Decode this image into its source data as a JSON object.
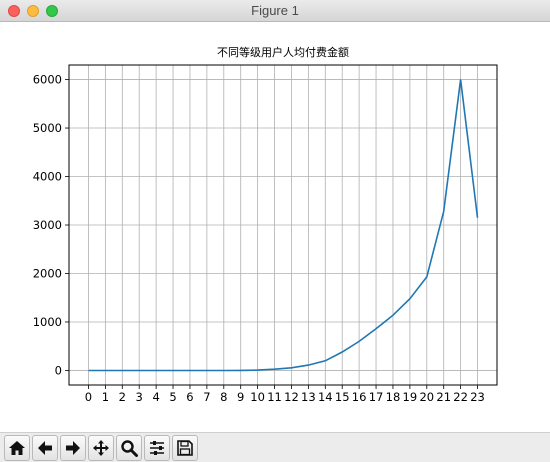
{
  "window": {
    "title": "Figure 1"
  },
  "toolbar": {
    "buttons": [
      {
        "name": "home-button",
        "icon": "home-icon"
      },
      {
        "name": "back-button",
        "icon": "arrow-left-icon"
      },
      {
        "name": "forward-button",
        "icon": "arrow-right-icon"
      },
      {
        "name": "pan-button",
        "icon": "move-icon"
      },
      {
        "name": "zoom-button",
        "icon": "magnifier-icon"
      },
      {
        "name": "configure-subplots-button",
        "icon": "sliders-icon"
      },
      {
        "name": "save-button",
        "icon": "floppy-disk-icon"
      }
    ]
  },
  "chart_data": {
    "type": "line",
    "title": "不同等级用户人均付费金额",
    "xlabel": "",
    "ylabel": "",
    "x": [
      0,
      1,
      2,
      3,
      4,
      5,
      6,
      7,
      8,
      9,
      10,
      11,
      12,
      13,
      14,
      15,
      16,
      17,
      18,
      19,
      20,
      21,
      22,
      23
    ],
    "values": [
      0,
      0,
      0,
      0,
      0,
      0,
      0,
      0,
      0,
      2,
      8,
      25,
      55,
      110,
      200,
      380,
      600,
      860,
      1140,
      1480,
      1930,
      3280,
      6000,
      3150
    ],
    "xticks": [
      "0",
      "1",
      "2",
      "3",
      "4",
      "5",
      "6",
      "7",
      "8",
      "9",
      "10",
      "11",
      "12",
      "13",
      "14",
      "15",
      "16",
      "17",
      "18",
      "19",
      "20",
      "21",
      "22",
      "23"
    ],
    "yticks": [
      "0",
      "1000",
      "2000",
      "3000",
      "4000",
      "5000",
      "6000"
    ],
    "ytick_values": [
      0,
      1000,
      2000,
      3000,
      4000,
      5000,
      6000
    ],
    "xlim": [
      -1.15,
      24.15
    ],
    "ylim": [
      -300,
      6300
    ],
    "grid": true,
    "line_color": "#1f77b4"
  }
}
